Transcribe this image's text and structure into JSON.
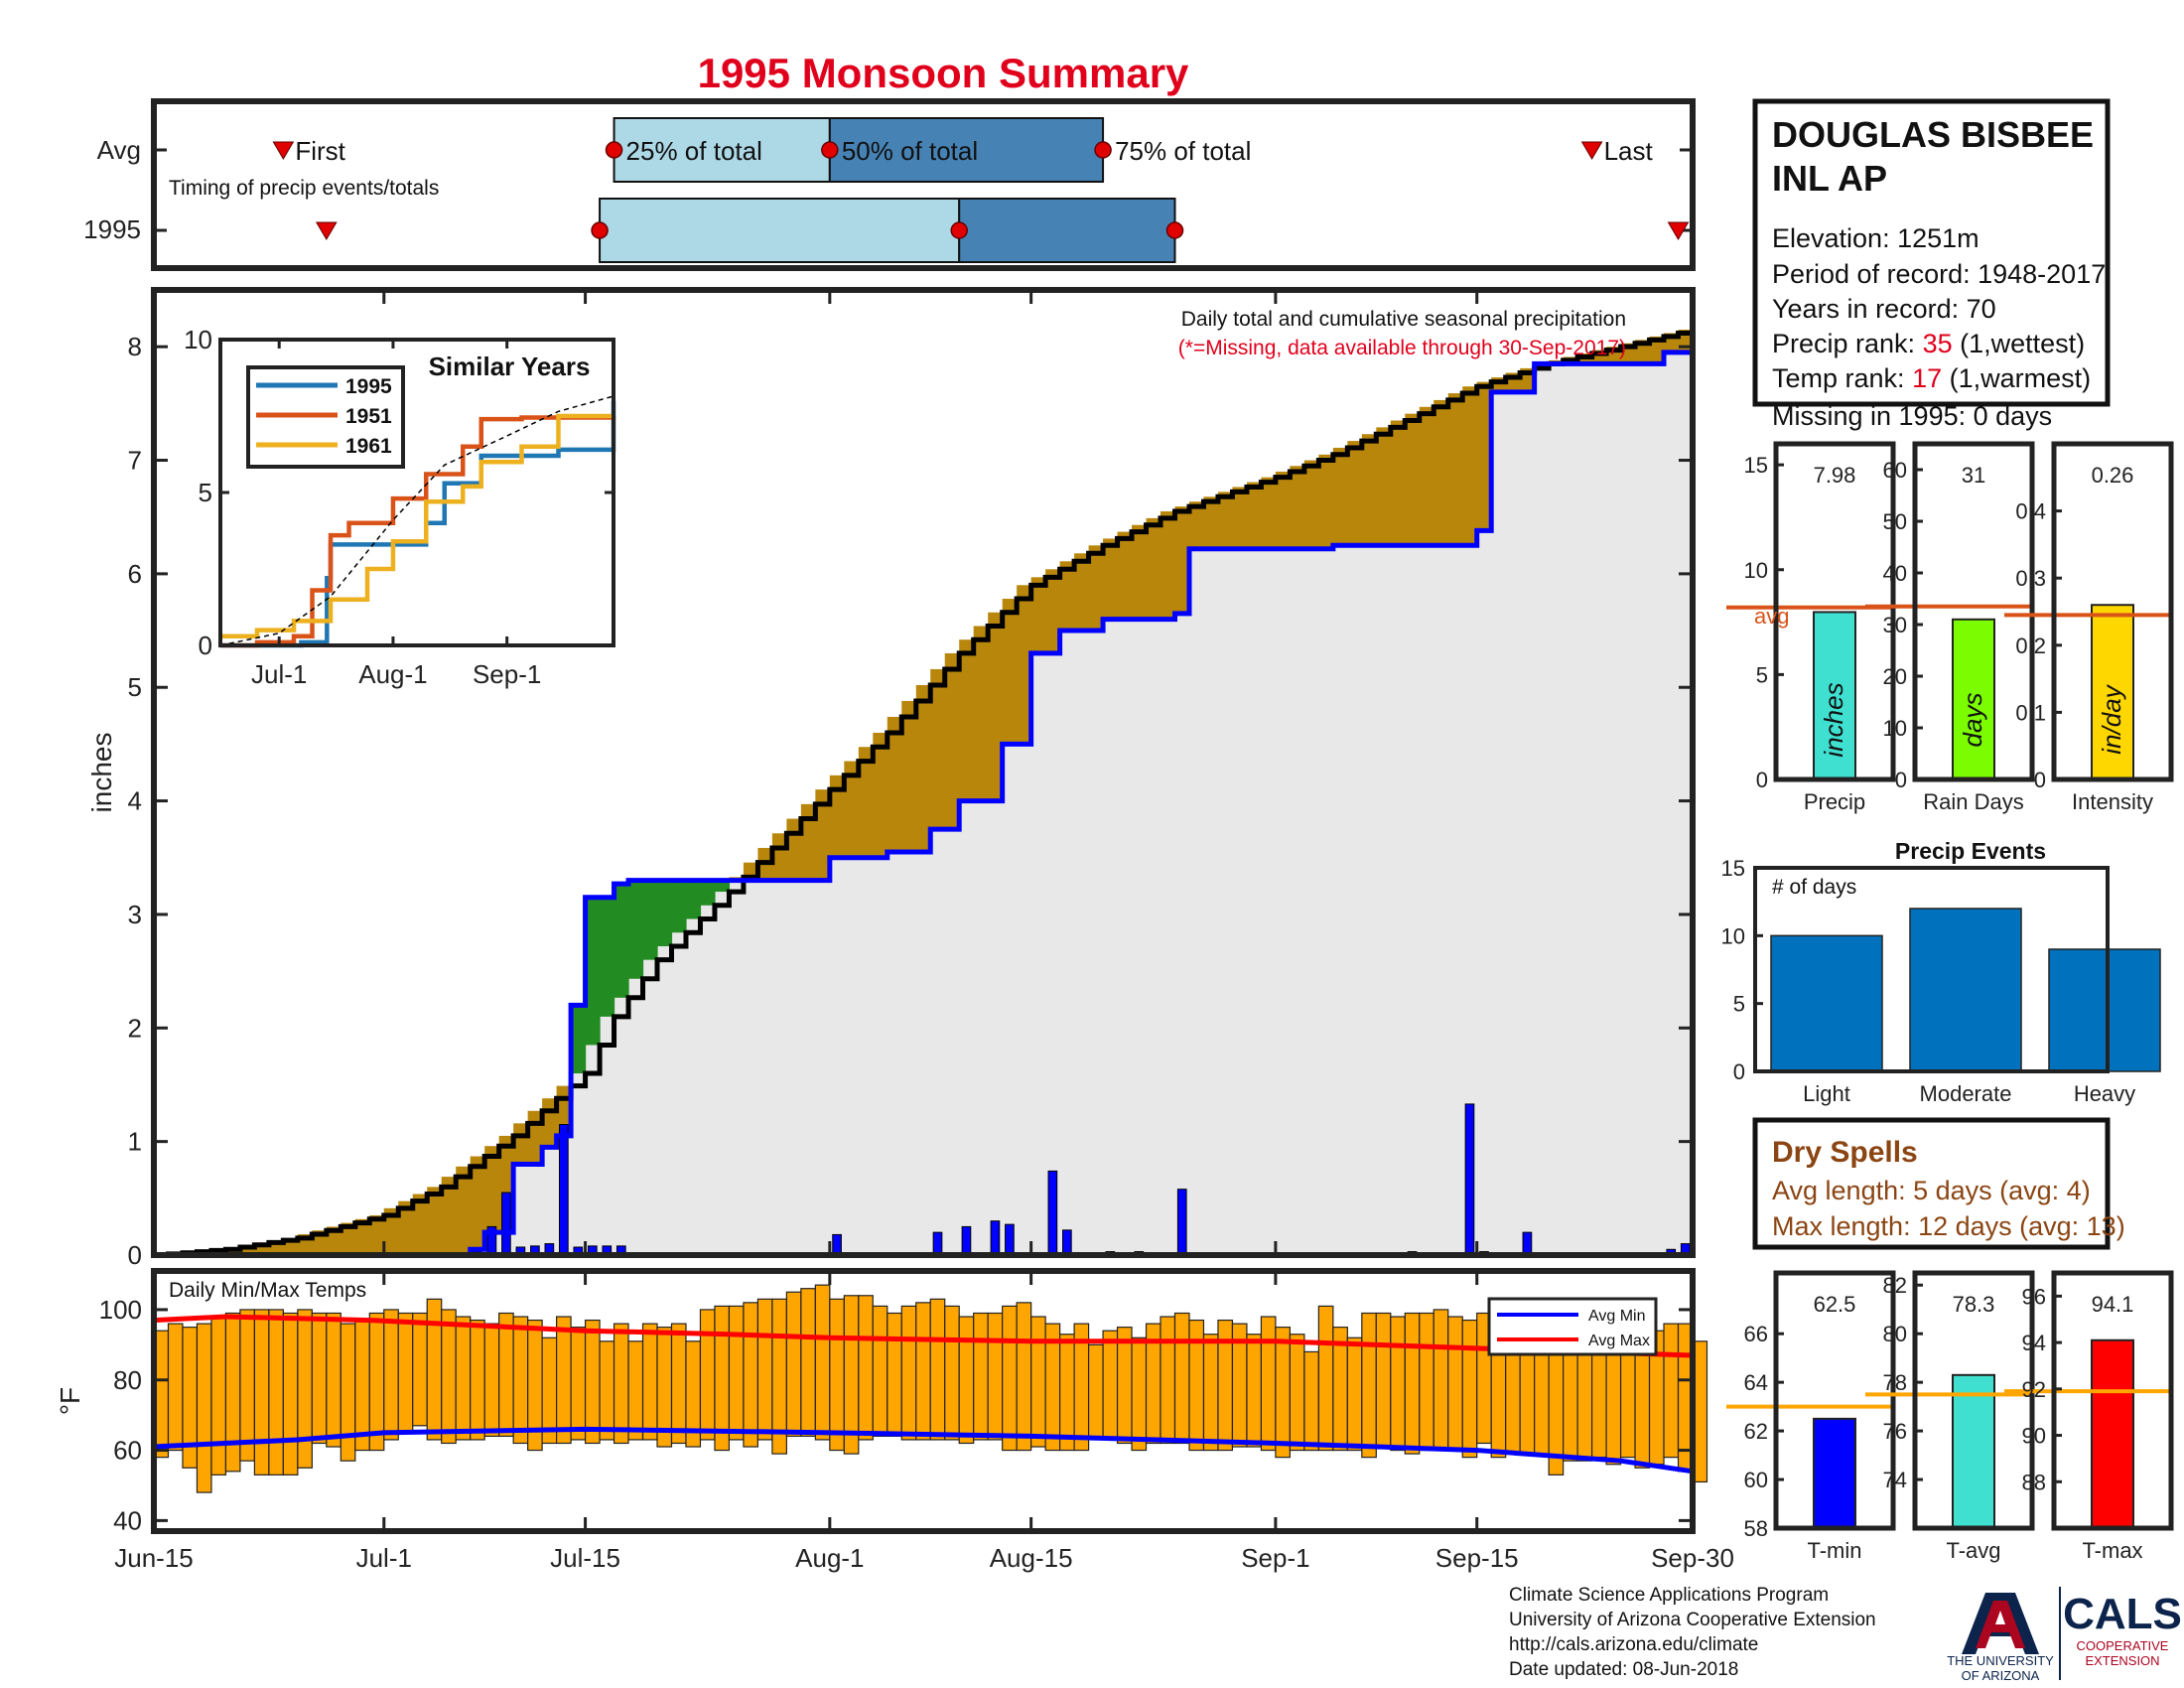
{
  "title": "1995 Monsoon Summary",
  "timing": {
    "label": "Timing of precip events/totals",
    "rows": [
      "Avg",
      "1995"
    ],
    "first_label": "First",
    "last_label": "Last",
    "p25_label": "25% of total",
    "p50_label": "50% of total",
    "p75_label": "75% of total",
    "avg": {
      "first": "2024-06-24",
      "p25": "2024-07-17",
      "p50": "2024-08-01",
      "p75": "2024-08-20",
      "last": "2024-09-23"
    },
    "y1995": {
      "first": "2024-06-27",
      "p25": "2024-07-16",
      "p50": "2024-08-10",
      "p75": "2024-08-25",
      "last": "2024-09-29"
    }
  },
  "station": {
    "name_line1": "DOUGLAS BISBEE",
    "name_line2": "INL AP",
    "elevation": "Elevation: 1251m",
    "period": "Period of record: 1948-2017",
    "years": "Years in record: 70",
    "precip_rank_label": "Precip rank: ",
    "precip_rank_value": "35",
    "precip_rank_note": " (1,wettest)",
    "temp_rank_label": "Temp rank: ",
    "temp_rank_value": "17",
    "temp_rank_note": " (1,warmest)",
    "missing": "Missing in 1995: 0 days"
  },
  "main_chart": {
    "caption1": "Daily total and cumulative seasonal precipitation",
    "caption2": "(*=Missing, data available through 30-Sep-2017)",
    "ylabel": "inches",
    "yticks": [
      "0",
      "1",
      "2",
      "3",
      "4",
      "5",
      "6",
      "7",
      "8"
    ],
    "xticks": [
      "Jun-15",
      "Jul-1",
      "Jul-15",
      "Aug-1",
      "Aug-15",
      "Sep-1",
      "Sep-15",
      "Sep-30"
    ]
  },
  "chart_data": [
    {
      "type": "line",
      "name": "cumulative seasonal precipitation",
      "xlim": [
        "2024-06-15",
        "2024-09-30"
      ],
      "ylim": [
        0,
        8.5
      ],
      "series": [
        {
          "name": "avg cumulative",
          "color": "#000000",
          "x": [
            "2024-06-15",
            "2024-06-20",
            "2024-06-25",
            "2024-07-01",
            "2024-07-05",
            "2024-07-10",
            "2024-07-15",
            "2024-07-17",
            "2024-07-20",
            "2024-07-25",
            "2024-08-01",
            "2024-08-05",
            "2024-08-10",
            "2024-08-15",
            "2024-08-20",
            "2024-08-25",
            "2024-09-01",
            "2024-09-05",
            "2024-09-10",
            "2024-09-15",
            "2024-09-20",
            "2024-09-25",
            "2024-09-30"
          ],
          "values": [
            0,
            0.05,
            0.15,
            0.35,
            0.6,
            1.05,
            1.6,
            2.1,
            2.6,
            3.2,
            4.1,
            4.6,
            5.3,
            5.9,
            6.25,
            6.55,
            6.85,
            7.05,
            7.35,
            7.65,
            7.85,
            8.0,
            8.15
          ]
        },
        {
          "name": "1995 cumulative",
          "color": "#0000ff",
          "x": [
            "2024-06-15",
            "2024-07-07",
            "2024-07-08",
            "2024-07-10",
            "2024-07-12",
            "2024-07-13",
            "2024-07-14",
            "2024-07-15",
            "2024-07-17",
            "2024-07-18",
            "2024-07-19",
            "2024-07-20",
            "2024-07-26",
            "2024-08-01",
            "2024-08-05",
            "2024-08-08",
            "2024-08-10",
            "2024-08-13",
            "2024-08-15",
            "2024-08-17",
            "2024-08-20",
            "2024-08-25",
            "2024-08-26",
            "2024-09-05",
            "2024-09-15",
            "2024-09-16",
            "2024-09-19",
            "2024-09-28",
            "2024-09-30"
          ],
          "values": [
            0,
            0.05,
            0.2,
            0.8,
            0.95,
            1.05,
            2.2,
            3.15,
            3.27,
            3.3,
            3.3,
            3.3,
            3.3,
            3.5,
            3.55,
            3.75,
            4.0,
            4.5,
            5.3,
            5.5,
            5.6,
            5.65,
            6.22,
            6.25,
            6.38,
            7.6,
            7.85,
            7.95,
            8.0
          ]
        }
      ],
      "daily_bars": {
        "color": "#0000ff",
        "x": [
          "2024-07-07",
          "2024-07-08",
          "2024-07-09",
          "2024-07-10",
          "2024-07-11",
          "2024-07-12",
          "2024-07-13",
          "2024-07-14",
          "2024-07-15",
          "2024-07-16",
          "2024-07-17",
          "2024-07-18",
          "2024-08-01",
          "2024-08-08",
          "2024-08-10",
          "2024-08-12",
          "2024-08-13",
          "2024-08-16",
          "2024-08-17",
          "2024-08-20",
          "2024-08-22",
          "2024-08-25",
          "2024-09-10",
          "2024-09-14",
          "2024-09-15",
          "2024-09-18",
          "2024-09-28",
          "2024-09-29"
        ],
        "values": [
          0.03,
          0.25,
          0.55,
          0.07,
          0.08,
          0.1,
          1.15,
          0.07,
          0.08,
          0.08,
          0.08,
          0.02,
          0.18,
          0.2,
          0.25,
          0.3,
          0.27,
          0.74,
          0.22,
          0.03,
          0.03,
          0.58,
          0.03,
          1.33,
          0.03,
          0.2,
          0.05,
          0.1
        ]
      }
    },
    {
      "type": "line",
      "name": "Similar Years",
      "title": "Similar Years",
      "xticks": [
        "Jul-1",
        "Aug-1",
        "Sep-1"
      ],
      "yticks": [
        "0",
        "5",
        "10"
      ],
      "ylim": [
        0,
        10
      ],
      "xlim": [
        "2024-06-15",
        "2024-09-30"
      ],
      "series": [
        {
          "name": "1995",
          "color": "#1f77b4",
          "x": [
            "2024-06-15",
            "2024-07-07",
            "2024-07-14",
            "2024-07-15",
            "2024-08-10",
            "2024-08-15",
            "2024-08-25",
            "2024-09-15",
            "2024-09-30"
          ],
          "values": [
            0,
            0.1,
            2.2,
            3.3,
            4.0,
            5.3,
            6.2,
            6.4,
            8.0
          ]
        },
        {
          "name": "1951",
          "color": "#d95319",
          "x": [
            "2024-06-15",
            "2024-06-25",
            "2024-07-05",
            "2024-07-10",
            "2024-07-15",
            "2024-07-20",
            "2024-08-01",
            "2024-08-10",
            "2024-08-20",
            "2024-08-25",
            "2024-09-05",
            "2024-09-30"
          ],
          "values": [
            0,
            0.1,
            0.3,
            1.8,
            3.6,
            4.0,
            4.8,
            5.6,
            6.5,
            7.4,
            7.45,
            7.5
          ]
        },
        {
          "name": "1961",
          "color": "#edb120",
          "x": [
            "2024-06-15",
            "2024-06-25",
            "2024-07-05",
            "2024-07-15",
            "2024-07-25",
            "2024-08-01",
            "2024-08-10",
            "2024-08-20",
            "2024-08-25",
            "2024-09-05",
            "2024-09-15",
            "2024-09-30"
          ],
          "values": [
            0.3,
            0.5,
            0.8,
            1.5,
            2.5,
            3.4,
            4.7,
            5.2,
            6.0,
            6.5,
            7.5,
            7.5
          ]
        },
        {
          "name": "avg",
          "color": "#000000",
          "x": [
            "2024-06-15",
            "2024-07-01",
            "2024-07-15",
            "2024-08-01",
            "2024-08-15",
            "2024-09-01",
            "2024-09-15",
            "2024-09-30"
          ],
          "values": [
            0,
            0.4,
            1.6,
            4.1,
            5.9,
            6.85,
            7.65,
            8.15
          ]
        }
      ]
    },
    {
      "type": "bar",
      "name": "Precip",
      "categories": [
        "Precip"
      ],
      "values": [
        7.98
      ],
      "value_label": "7.98",
      "avg": 8.2,
      "avg_label": "avg",
      "unit": "inches",
      "color": "#40e0d0",
      "ylim": [
        0,
        16
      ],
      "yticks": [
        "0",
        "5",
        "10",
        "15"
      ]
    },
    {
      "type": "bar",
      "name": "Rain Days",
      "categories": [
        "Rain Days"
      ],
      "values": [
        31
      ],
      "value_label": "31",
      "avg": 33.5,
      "unit": "days",
      "color": "#7cfc00",
      "ylim": [
        0,
        65
      ],
      "yticks": [
        "0",
        "10",
        "20",
        "30",
        "40",
        "50",
        "60"
      ]
    },
    {
      "type": "bar",
      "name": "Intensity",
      "categories": [
        "Intensity"
      ],
      "values": [
        0.26
      ],
      "value_label": "0.26",
      "avg": 0.245,
      "unit": "in/day",
      "color": "#ffd700",
      "ylim": [
        0,
        0.5
      ],
      "yticks": [
        "0",
        "0.1",
        "0.2",
        "0.3",
        "0.4"
      ]
    },
    {
      "type": "bar",
      "name": "Precip Events",
      "title": "Precip Events",
      "annotation": "# of days",
      "categories": [
        "Light",
        "Moderate",
        "Heavy"
      ],
      "values": [
        10,
        12,
        9
      ],
      "color": "#0072bd",
      "ylim": [
        0,
        15
      ],
      "yticks": [
        "0",
        "5",
        "10",
        "15"
      ]
    },
    {
      "type": "bar",
      "name": "Daily Min/Max Temps",
      "title": "Daily Min/Max Temps",
      "ylabel": "°F",
      "yticks": [
        "40",
        "60",
        "80",
        "100"
      ],
      "ylim": [
        37,
        111
      ],
      "xlim": [
        "2024-06-15",
        "2024-09-30"
      ],
      "legend": [
        "Avg Min",
        "Avg Max"
      ],
      "legend_placement": "top-right",
      "bar_color": "#ffa500",
      "avg_max": {
        "color": "#ff0000",
        "x": [
          "2024-06-15",
          "2024-06-20",
          "2024-06-30",
          "2024-07-05",
          "2024-07-15",
          "2024-07-25",
          "2024-08-01",
          "2024-08-15",
          "2024-09-01",
          "2024-09-15",
          "2024-09-30"
        ],
        "values": [
          97,
          98,
          97,
          96,
          94,
          93,
          92,
          91,
          91,
          89,
          87
        ]
      },
      "avg_min": {
        "color": "#0000ff",
        "x": [
          "2024-06-15",
          "2024-06-25",
          "2024-07-01",
          "2024-07-15",
          "2024-08-01",
          "2024-08-15",
          "2024-09-01",
          "2024-09-15",
          "2024-09-25",
          "2024-09-30"
        ],
        "values": [
          61,
          63,
          65,
          66,
          65,
          64,
          62,
          60,
          57,
          54
        ]
      },
      "daily_max": [
        94,
        96,
        95,
        96,
        98,
        99,
        100,
        100,
        100,
        99,
        100,
        99,
        99,
        96,
        97,
        99,
        100,
        99,
        99,
        103,
        100,
        98,
        97,
        96,
        99,
        98,
        97,
        92,
        98,
        95,
        97,
        91,
        96,
        91,
        96,
        95,
        96,
        91,
        100,
        101,
        101,
        102,
        103,
        103,
        105,
        106,
        107,
        103,
        104,
        104,
        101,
        99,
        101,
        102,
        103,
        101,
        98,
        99,
        99,
        101,
        102,
        98,
        96,
        93,
        96,
        90,
        94,
        95,
        92,
        96,
        98,
        99,
        97,
        93,
        97,
        96,
        93,
        98,
        95,
        93,
        88,
        101,
        95,
        92,
        99,
        99,
        98,
        99,
        99,
        100,
        98,
        97,
        99,
        100,
        96,
        94,
        100,
        100,
        96,
        100,
        92,
        95,
        97,
        99,
        94,
        96,
        96,
        91
      ],
      "daily_min": [
        58,
        60,
        55,
        48,
        53,
        54,
        57,
        53,
        53,
        53,
        55,
        62,
        61,
        57,
        60,
        60,
        63,
        65,
        67,
        63,
        62,
        63,
        63,
        64,
        64,
        62,
        60,
        62,
        62,
        63,
        62,
        63,
        62,
        63,
        63,
        61,
        62,
        61,
        63,
        60,
        63,
        61,
        63,
        59,
        64,
        64,
        63,
        60,
        59,
        63,
        64,
        64,
        63,
        63,
        63,
        63,
        62,
        63,
        63,
        60,
        60,
        61,
        60,
        60,
        60,
        63,
        63,
        62,
        60,
        62,
        62,
        62,
        60,
        60,
        60,
        61,
        61,
        60,
        58,
        60,
        60,
        60,
        60,
        60,
        58,
        61,
        60,
        59,
        60,
        60,
        60,
        58,
        62,
        58,
        59,
        59,
        59,
        53,
        57,
        57,
        58,
        56,
        58,
        55,
        56,
        58,
        54,
        51
      ]
    },
    {
      "type": "bar",
      "name": "T-min",
      "categories": [
        "T-min"
      ],
      "values": [
        62.5
      ],
      "value_label": "62.5",
      "avg": 63.0,
      "color": "#0000ff",
      "ylim": [
        58,
        68.5
      ],
      "yticks": [
        "58",
        "60",
        "62",
        "64",
        "66"
      ]
    },
    {
      "type": "bar",
      "name": "T-avg",
      "categories": [
        "T-avg"
      ],
      "values": [
        78.3
      ],
      "value_label": "78.3",
      "avg": 77.5,
      "color": "#40e0d0",
      "ylim": [
        72,
        82.5
      ],
      "yticks": [
        "74",
        "76",
        "78",
        "80",
        "82"
      ]
    },
    {
      "type": "bar",
      "name": "T-max",
      "categories": [
        "T-max"
      ],
      "values": [
        94.1
      ],
      "value_label": "94.1",
      "avg": 91.9,
      "color": "#ff0000",
      "ylim": [
        86,
        97
      ],
      "yticks": [
        "88",
        "90",
        "92",
        "94",
        "96"
      ]
    }
  ],
  "dry_spells": {
    "title": "Dry Spells",
    "avg_length": "Avg length: 5 days (avg: 4)",
    "max_length": "Max length: 12 days (avg: 13)",
    "color": "#8b4513"
  },
  "footer": {
    "line1": "Climate Science Applications Program",
    "line2": "University of Arizona Cooperative Extension",
    "line3": "http://cals.arizona.edu/climate",
    "line4": " Date updated: 08-Jun-2018",
    "ua_line1": "THE UNIVERSITY",
    "ua_line2": "OF ARIZONA",
    "cals": "CALS",
    "coop1": "COOPERATIVE",
    "coop2": "EXTENSION"
  },
  "colors": {
    "title_red": "#e0001b",
    "surplus_green": "#228b22",
    "deficit_brown": "#b8860b",
    "fill_gray": "#e8e8e8",
    "timing_light": "#add8e6",
    "timing_dark": "#4682b4",
    "avg_line_orange": "#d95319",
    "temp_avg_line": "#ffa500",
    "ua_red": "#ab0520",
    "ua_blue": "#0c234b"
  }
}
